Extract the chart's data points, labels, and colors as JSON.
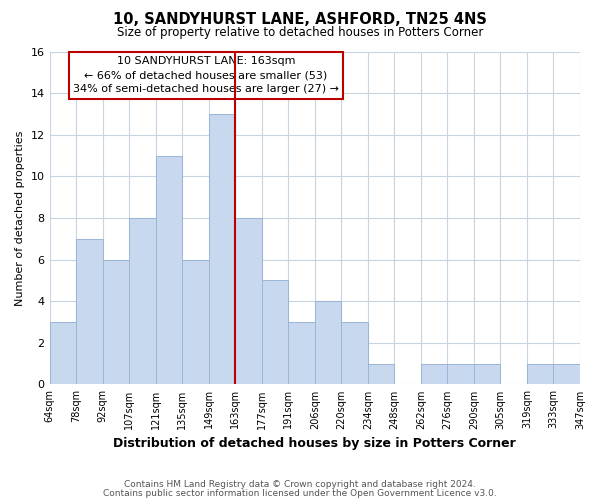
{
  "title": "10, SANDYHURST LANE, ASHFORD, TN25 4NS",
  "subtitle": "Size of property relative to detached houses in Potters Corner",
  "xlabel": "Distribution of detached houses by size in Potters Corner",
  "ylabel": "Number of detached properties",
  "bin_labels": [
    "64sqm",
    "78sqm",
    "92sqm",
    "107sqm",
    "121sqm",
    "135sqm",
    "149sqm",
    "163sqm",
    "177sqm",
    "191sqm",
    "206sqm",
    "220sqm",
    "234sqm",
    "248sqm",
    "262sqm",
    "276sqm",
    "290sqm",
    "305sqm",
    "319sqm",
    "333sqm",
    "347sqm"
  ],
  "bar_values": [
    3,
    7,
    6,
    8,
    11,
    6,
    13,
    8,
    5,
    3,
    4,
    3,
    1,
    0,
    1,
    1,
    1,
    0,
    1,
    1
  ],
  "bar_color": "#c8d8ee",
  "bar_edge_color": "#9ab5d5",
  "highlight_bar_index": 6,
  "highlight_color": "#bb0000",
  "ylim": [
    0,
    16
  ],
  "yticks": [
    0,
    2,
    4,
    6,
    8,
    10,
    12,
    14,
    16
  ],
  "annotation_title": "10 SANDYHURST LANE: 163sqm",
  "annotation_line1": "← 66% of detached houses are smaller (53)",
  "annotation_line2": "34% of semi-detached houses are larger (27) →",
  "footer_line1": "Contains HM Land Registry data © Crown copyright and database right 2024.",
  "footer_line2": "Contains public sector information licensed under the Open Government Licence v3.0.",
  "background_color": "#ffffff",
  "grid_color": "#c8d4e0"
}
